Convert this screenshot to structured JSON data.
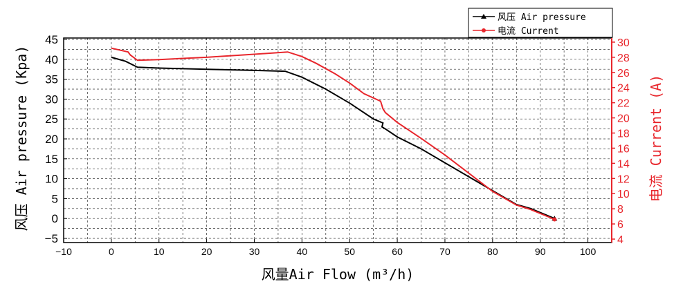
{
  "chart_data": {
    "type": "line",
    "title": "",
    "xlabel": "风量Air Flow (m³/h)",
    "ylabel": "风压 Air pressure (Kpa)",
    "y2label": "电流 Current (A)",
    "xlim": [
      -10,
      105
    ],
    "ylim": [
      -5,
      45
    ],
    "y2lim": [
      4,
      31
    ],
    "x_ticks": [
      "-10",
      "0",
      "10",
      "20",
      "30",
      "40",
      "50",
      "60",
      "70",
      "80",
      "90",
      "100"
    ],
    "y_ticks": [
      "45",
      "40",
      "35",
      "30",
      "25",
      "20",
      "15",
      "10",
      "5",
      "0",
      "-5"
    ],
    "y2_ticks": [
      "30",
      "28",
      "26",
      "24",
      "22",
      "20",
      "18",
      "16",
      "14",
      "12",
      "10",
      "8",
      "6",
      "4"
    ],
    "grid": true,
    "legend_position": "top-right",
    "series": [
      {
        "name": "风压 Air pressure",
        "axis": "left",
        "color": "#000000",
        "marker": "triangle",
        "x": [
          0,
          3,
          5.5,
          10,
          20,
          30,
          36.5,
          40,
          45,
          50,
          55,
          57,
          56.8,
          57.5,
          60,
          65,
          70,
          75,
          80,
          85,
          88,
          93
        ],
        "y": [
          40.5,
          39.5,
          38,
          37.8,
          37.5,
          37.2,
          37,
          35.5,
          32.5,
          29,
          25,
          24,
          23,
          22.5,
          20.5,
          17.5,
          14,
          10.5,
          7,
          3.5,
          2.5,
          0
        ]
      },
      {
        "name": "电流 Current",
        "axis": "right",
        "color": "#e8262c",
        "marker": "circle",
        "x": [
          0,
          3.5,
          4,
          5.5,
          10,
          20,
          30,
          37,
          40,
          43,
          47,
          50,
          53,
          56.5,
          57,
          57.5,
          60,
          65,
          70,
          75,
          80,
          85,
          88,
          93
        ],
        "y": [
          29.2,
          28.7,
          28.3,
          27.6,
          27.7,
          28,
          28.4,
          28.7,
          28.1,
          27.2,
          25.8,
          24.6,
          23.2,
          22.2,
          21.2,
          20.7,
          19.4,
          17.3,
          15.1,
          12.7,
          10.3,
          8.5,
          7.9,
          6.6
        ]
      }
    ]
  },
  "legend": {
    "items": [
      {
        "label": "风压 Air pressure",
        "color": "#000000"
      },
      {
        "label": "电流 Current",
        "color": "#e8262c"
      }
    ]
  },
  "axes": {
    "x_title": "风量Air Flow (m³/h)",
    "y_left_title": "风压 Air pressure (Kpa)",
    "y_right_title": "电流 Current (A)"
  }
}
